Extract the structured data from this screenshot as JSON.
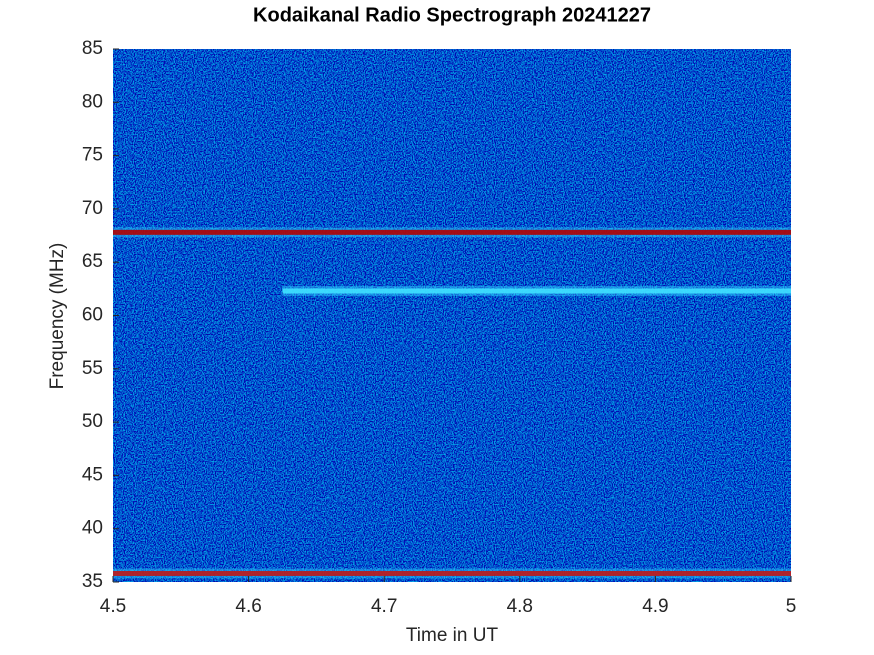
{
  "chart_data": {
    "type": "spectrogram",
    "title": "Kodaikanal Radio Spectrograph  20241227",
    "x_label": "Time in UT",
    "y_label": "Frequency (MHz)",
    "xlim": [
      4.5,
      5
    ],
    "xticks": [
      4.5,
      4.6,
      4.7,
      4.8,
      4.9,
      5
    ],
    "ylim": [
      35,
      85
    ],
    "yticks": [
      35,
      40,
      45,
      50,
      55,
      60,
      65,
      70,
      75,
      80,
      85
    ],
    "background_color": "#0a2aa8",
    "bands": [
      {
        "y": 67.8,
        "x": [
          4.5,
          5
        ],
        "color": "#b00000"
      },
      {
        "y": 62.3,
        "x": [
          4.625,
          5
        ],
        "color": "#40e0ff"
      },
      {
        "y": 35.8,
        "x": [
          4.5,
          5
        ],
        "color": "#c01818"
      }
    ]
  }
}
